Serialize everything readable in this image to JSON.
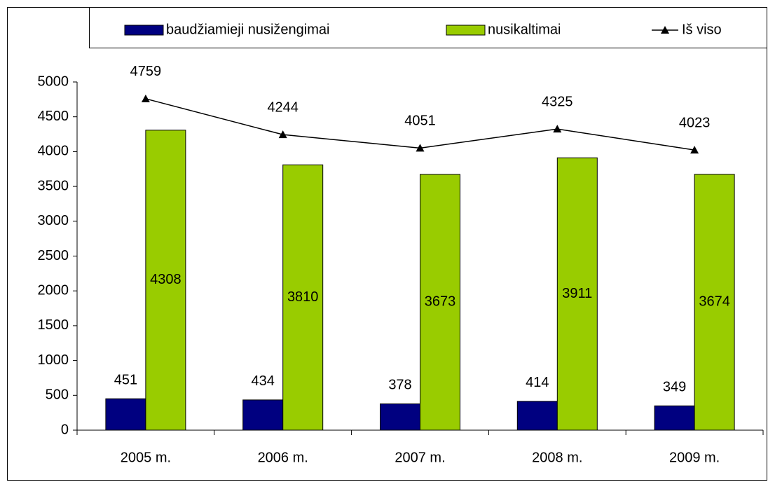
{
  "chart_data": {
    "type": "bar_line",
    "categories": [
      "2005 m.",
      "2006 m.",
      "2007 m.",
      "2008 m.",
      "2009 m."
    ],
    "series": [
      {
        "name": "baudžiamieji nusižengimai",
        "color": "#000080",
        "type": "bar",
        "values": [
          451,
          434,
          378,
          414,
          349
        ]
      },
      {
        "name": "nusikaltimai",
        "color": "#99cc00",
        "type": "bar",
        "values": [
          4308,
          3810,
          3673,
          3911,
          3674
        ]
      },
      {
        "name": "Iš viso",
        "color": "#000000",
        "type": "line",
        "values": [
          4759,
          4244,
          4051,
          4325,
          4023
        ]
      }
    ],
    "ylim": [
      0,
      5000
    ],
    "yticks": [
      0,
      500,
      1000,
      1500,
      2000,
      2500,
      3000,
      3500,
      4000,
      4500,
      5000
    ],
    "grid": false,
    "legend": "top"
  }
}
